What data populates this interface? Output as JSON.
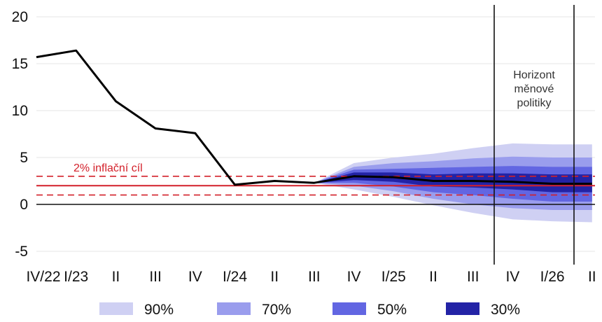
{
  "chart_data": {
    "type": "line",
    "categories": [
      "IV/22",
      "I/23",
      "II",
      "III",
      "IV",
      "I/24",
      "II",
      "III",
      "IV",
      "I/25",
      "II",
      "III",
      "IV",
      "I/26",
      "II"
    ],
    "yticks": [
      20,
      15,
      10,
      5,
      0,
      -5
    ],
    "ylim": [
      -5.5,
      21
    ],
    "grid": true,
    "series": [
      {
        "values": [
          15.7,
          16.4,
          11.0,
          8.1,
          7.6,
          2.1,
          2.5,
          2.3,
          3.0,
          2.9,
          2.5,
          2.5,
          2.4,
          2.2,
          2.2
        ]
      }
    ],
    "forecast_bands": {
      "x_start_index": 7,
      "center": [
        2.3,
        3.0,
        2.9,
        2.5,
        2.5,
        2.4,
        2.2,
        2.2
      ],
      "bands": [
        {
          "label": "90%",
          "color": "#cfd0f3",
          "lower": [
            2.3,
            1.6,
            0.8,
            -0.1,
            -0.9,
            -1.6,
            -1.8,
            -1.9
          ],
          "upper": [
            2.3,
            4.4,
            5.0,
            5.4,
            6.0,
            6.5,
            6.4,
            6.4
          ]
        },
        {
          "label": "70%",
          "color": "#9a9ded",
          "lower": [
            2.3,
            2.0,
            1.4,
            0.6,
            0.0,
            -0.4,
            -0.6,
            -0.6
          ],
          "upper": [
            2.3,
            4.0,
            4.4,
            4.6,
            4.9,
            5.1,
            5.0,
            5.0
          ]
        },
        {
          "label": "50%",
          "color": "#6266e2",
          "lower": [
            2.3,
            2.3,
            1.9,
            1.3,
            1.0,
            0.6,
            0.3,
            0.3
          ],
          "upper": [
            2.3,
            3.7,
            3.8,
            3.9,
            4.0,
            4.1,
            4.0,
            4.0
          ]
        },
        {
          "label": "30%",
          "color": "#2323a6",
          "lower": [
            2.3,
            2.6,
            2.4,
            1.9,
            1.8,
            1.6,
            1.3,
            1.3
          ],
          "upper": [
            2.3,
            3.4,
            3.4,
            3.2,
            3.3,
            3.3,
            3.2,
            3.2
          ]
        }
      ]
    },
    "inflation_target": {
      "label": "2% inflační cíl",
      "value": 2,
      "lower": 1,
      "upper": 3,
      "color": "#d3202a"
    },
    "policy_horizon": {
      "label_lines": [
        "Horizont",
        "měnové",
        "politiky"
      ],
      "from_index": 12,
      "to_index": 14
    },
    "legend": [
      {
        "label": "90%",
        "color": "#cfd0f3"
      },
      {
        "label": "70%",
        "color": "#9a9ded"
      },
      {
        "label": "50%",
        "color": "#6266e2"
      },
      {
        "label": "30%",
        "color": "#2323a6"
      }
    ]
  }
}
